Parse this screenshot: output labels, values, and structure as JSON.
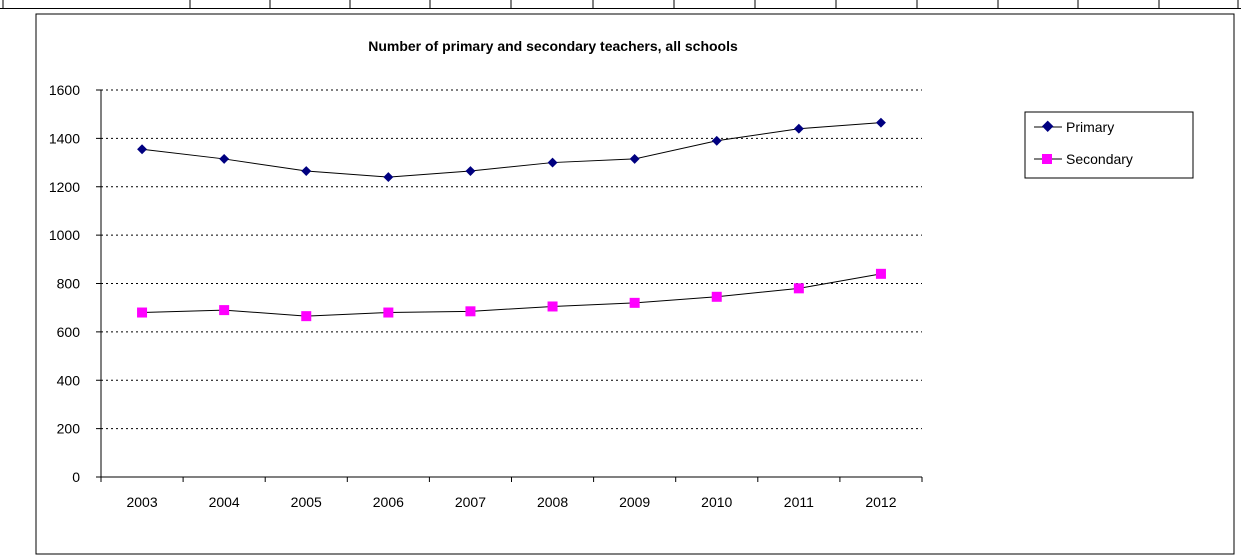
{
  "colors": {
    "primary_line": "#000000",
    "primary_marker": "#000080",
    "secondary_line": "#000000",
    "secondary_marker": "#ff00ff",
    "grid": "#000000",
    "background": "#ffffff"
  },
  "chart_data": {
    "type": "line",
    "title": "Number of primary and secondary teachers, all schools",
    "xlabel": "",
    "ylabel": "",
    "categories": [
      "2003",
      "2004",
      "2005",
      "2006",
      "2007",
      "2008",
      "2009",
      "2010",
      "2011",
      "2012"
    ],
    "ylim": [
      0,
      1600
    ],
    "yticks": [
      0,
      200,
      400,
      600,
      800,
      1000,
      1200,
      1400,
      1600
    ],
    "grid": "horizontal dotted",
    "legend_position": "right",
    "series": [
      {
        "name": "Primary",
        "marker": "diamond",
        "values": [
          1355,
          1315,
          1265,
          1240,
          1265,
          1300,
          1315,
          1390,
          1440,
          1465
        ]
      },
      {
        "name": "Secondary",
        "marker": "square",
        "values": [
          680,
          690,
          665,
          680,
          685,
          705,
          720,
          745,
          780,
          840
        ]
      }
    ]
  }
}
